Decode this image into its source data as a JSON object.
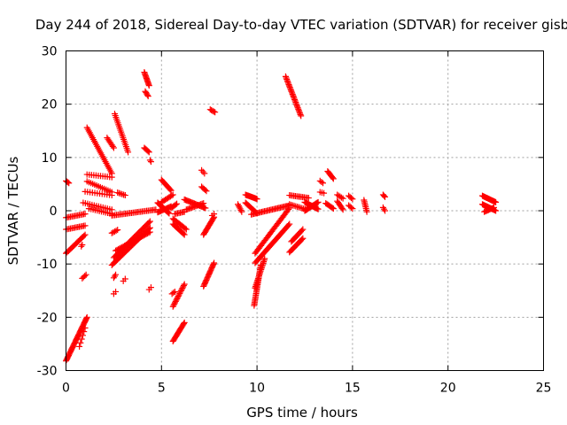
{
  "chart_data": {
    "type": "scatter",
    "title": "Day 244 of 2018, Sidereal Day-to-day VTEC variation (SDTVAR) for receiver gisb",
    "xlabel": "GPS time / hours",
    "ylabel": "SDTVAR / TECUs",
    "xlim": [
      0,
      25
    ],
    "ylim": [
      -30,
      30
    ],
    "xticks": [
      0,
      5,
      10,
      15,
      20,
      25
    ],
    "yticks": [
      -30,
      -20,
      -10,
      0,
      10,
      20,
      30
    ],
    "grid": true,
    "marker": "+",
    "color": "#ff0000",
    "segments": [
      {
        "x0": 0.0,
        "y0": -28.2,
        "x1": 1.1,
        "y1": -20.0,
        "n": 40
      },
      {
        "x0": 0.7,
        "y0": -25.5,
        "x1": 1.0,
        "y1": -22.0,
        "n": 6
      },
      {
        "x0": 0.0,
        "y0": 5.6,
        "x1": 0.15,
        "y1": 5.2,
        "n": 4
      },
      {
        "x0": 0.0,
        "y0": -8.0,
        "x1": 1.0,
        "y1": -4.5,
        "n": 18
      },
      {
        "x0": 0.0,
        "y0": -3.5,
        "x1": 1.0,
        "y1": -2.8,
        "n": 14
      },
      {
        "x0": 0.0,
        "y0": -1.3,
        "x1": 1.0,
        "y1": -0.6,
        "n": 14
      },
      {
        "x0": 0.85,
        "y0": -12.7,
        "x1": 1.05,
        "y1": -12.0,
        "n": 4
      },
      {
        "x0": 0.8,
        "y0": -6.7,
        "x1": 0.85,
        "y1": -6.4,
        "n": 2
      },
      {
        "x0": 1.1,
        "y0": 15.6,
        "x1": 2.4,
        "y1": 7.0,
        "n": 28
      },
      {
        "x0": 1.1,
        "y0": 6.8,
        "x1": 2.4,
        "y1": 6.3,
        "n": 12
      },
      {
        "x0": 1.1,
        "y0": 5.5,
        "x1": 2.4,
        "y1": 3.5,
        "n": 14
      },
      {
        "x0": 1.0,
        "y0": 3.6,
        "x1": 2.4,
        "y1": 2.9,
        "n": 12
      },
      {
        "x0": 0.9,
        "y0": 1.5,
        "x1": 2.4,
        "y1": 0.2,
        "n": 14
      },
      {
        "x0": 1.2,
        "y0": 0.4,
        "x1": 2.4,
        "y1": -0.6,
        "n": 12
      },
      {
        "x0": 2.15,
        "y0": 13.7,
        "x1": 2.5,
        "y1": 11.8,
        "n": 8
      },
      {
        "x0": 2.55,
        "y0": 18.2,
        "x1": 3.25,
        "y1": 11.0,
        "n": 22
      },
      {
        "x0": 2.7,
        "y0": 3.4,
        "x1": 3.1,
        "y1": 2.9,
        "n": 6
      },
      {
        "x0": 2.4,
        "y0": -0.9,
        "x1": 4.7,
        "y1": 0.2,
        "n": 30
      },
      {
        "x0": 2.4,
        "y0": -4.2,
        "x1": 2.7,
        "y1": -3.6,
        "n": 5
      },
      {
        "x0": 2.4,
        "y0": -10.2,
        "x1": 4.4,
        "y1": -3.2,
        "n": 36
      },
      {
        "x0": 2.5,
        "y0": -8.8,
        "x1": 4.4,
        "y1": -2.0,
        "n": 34
      },
      {
        "x0": 2.5,
        "y0": -12.6,
        "x1": 2.6,
        "y1": -12.0,
        "n": 3
      },
      {
        "x0": 2.6,
        "y0": -7.5,
        "x1": 4.4,
        "y1": -4.0,
        "n": 28
      },
      {
        "x0": 2.5,
        "y0": -15.6,
        "x1": 2.6,
        "y1": -15.2,
        "n": 2
      },
      {
        "x0": 3.0,
        "y0": -13.2,
        "x1": 3.1,
        "y1": -12.8,
        "n": 2
      },
      {
        "x0": 4.1,
        "y0": 26.0,
        "x1": 4.35,
        "y1": 23.5,
        "n": 12
      },
      {
        "x0": 4.15,
        "y0": 22.4,
        "x1": 4.3,
        "y1": 21.5,
        "n": 5
      },
      {
        "x0": 4.1,
        "y0": 11.8,
        "x1": 4.35,
        "y1": 11.0,
        "n": 6
      },
      {
        "x0": 4.4,
        "y0": 9.5,
        "x1": 4.45,
        "y1": 9.2,
        "n": 2
      },
      {
        "x0": 4.35,
        "y0": -14.8,
        "x1": 4.45,
        "y1": -14.4,
        "n": 2
      },
      {
        "x0": 4.8,
        "y0": 1.5,
        "x1": 5.4,
        "y1": -0.5,
        "n": 16
      },
      {
        "x0": 4.8,
        "y0": -0.3,
        "x1": 5.5,
        "y1": 0.8,
        "n": 14
      },
      {
        "x0": 5.0,
        "y0": 5.8,
        "x1": 5.5,
        "y1": 3.8,
        "n": 12
      },
      {
        "x0": 5.0,
        "y0": 1.6,
        "x1": 5.6,
        "y1": 3.0,
        "n": 10
      },
      {
        "x0": 5.6,
        "y0": -1.5,
        "x1": 6.3,
        "y1": -3.5,
        "n": 12
      },
      {
        "x0": 5.6,
        "y0": -2.5,
        "x1": 6.2,
        "y1": -4.5,
        "n": 12
      },
      {
        "x0": 5.7,
        "y0": -0.6,
        "x1": 6.2,
        "y1": -0.2,
        "n": 8
      },
      {
        "x0": 5.5,
        "y0": 0.5,
        "x1": 5.8,
        "y1": 1.3,
        "n": 6
      },
      {
        "x0": 5.6,
        "y0": -18.0,
        "x1": 6.2,
        "y1": -13.8,
        "n": 18
      },
      {
        "x0": 5.6,
        "y0": -24.5,
        "x1": 6.2,
        "y1": -21.0,
        "n": 18
      },
      {
        "x0": 5.55,
        "y0": -15.6,
        "x1": 5.7,
        "y1": -15.2,
        "n": 3
      },
      {
        "x0": 6.2,
        "y0": 2.1,
        "x1": 7.3,
        "y1": 0.5,
        "n": 20
      },
      {
        "x0": 6.3,
        "y0": 0.2,
        "x1": 7.2,
        "y1": 1.4,
        "n": 14
      },
      {
        "x0": 7.1,
        "y0": 7.6,
        "x1": 7.25,
        "y1": 7.0,
        "n": 3
      },
      {
        "x0": 7.1,
        "y0": 4.5,
        "x1": 7.35,
        "y1": 3.7,
        "n": 5
      },
      {
        "x0": 7.2,
        "y0": -4.5,
        "x1": 7.75,
        "y1": -1.2,
        "n": 16
      },
      {
        "x0": 7.2,
        "y0": -14.2,
        "x1": 7.75,
        "y1": -9.8,
        "n": 20
      },
      {
        "x0": 7.55,
        "y0": 19.0,
        "x1": 7.8,
        "y1": 18.5,
        "n": 5
      },
      {
        "x0": 7.65,
        "y0": -0.9,
        "x1": 7.75,
        "y1": -0.6,
        "n": 2
      },
      {
        "x0": 9.0,
        "y0": 1.2,
        "x1": 9.2,
        "y1": -0.2,
        "n": 6
      },
      {
        "x0": 9.4,
        "y0": 3.0,
        "x1": 10.0,
        "y1": 2.2,
        "n": 14
      },
      {
        "x0": 9.4,
        "y0": 1.5,
        "x1": 10.0,
        "y1": -0.5,
        "n": 14
      },
      {
        "x0": 9.7,
        "y0": -0.7,
        "x1": 11.7,
        "y1": 1.0,
        "n": 30
      },
      {
        "x0": 9.9,
        "y0": -8.0,
        "x1": 11.7,
        "y1": 0.5,
        "n": 36
      },
      {
        "x0": 9.9,
        "y0": -9.8,
        "x1": 11.7,
        "y1": -2.5,
        "n": 36
      },
      {
        "x0": 9.85,
        "y0": -17.8,
        "x1": 10.2,
        "y1": -10.2,
        "n": 28
      },
      {
        "x0": 9.9,
        "y0": -14.5,
        "x1": 10.4,
        "y1": -9.0,
        "n": 20
      },
      {
        "x0": 11.5,
        "y0": 25.2,
        "x1": 12.3,
        "y1": 17.8,
        "n": 30
      },
      {
        "x0": 11.7,
        "y0": 2.9,
        "x1": 12.7,
        "y1": 2.4,
        "n": 14
      },
      {
        "x0": 11.7,
        "y0": 1.2,
        "x1": 12.6,
        "y1": 0.2,
        "n": 12
      },
      {
        "x0": 11.7,
        "y0": -7.8,
        "x1": 12.4,
        "y1": -5.2,
        "n": 14
      },
      {
        "x0": 11.8,
        "y0": -5.8,
        "x1": 12.4,
        "y1": -3.5,
        "n": 12
      },
      {
        "x0": 12.5,
        "y0": 1.6,
        "x1": 13.2,
        "y1": 0.3,
        "n": 16
      },
      {
        "x0": 12.5,
        "y0": 0.0,
        "x1": 13.2,
        "y1": 1.6,
        "n": 16
      },
      {
        "x0": 13.3,
        "y0": 5.6,
        "x1": 13.45,
        "y1": 5.2,
        "n": 3
      },
      {
        "x0": 13.3,
        "y0": 3.5,
        "x1": 13.5,
        "y1": 3.3,
        "n": 3
      },
      {
        "x0": 13.7,
        "y0": 7.4,
        "x1": 14.0,
        "y1": 6.0,
        "n": 8
      },
      {
        "x0": 13.6,
        "y0": 1.4,
        "x1": 14.0,
        "y1": 0.4,
        "n": 8
      },
      {
        "x0": 14.2,
        "y0": 3.0,
        "x1": 14.5,
        "y1": 2.3,
        "n": 5
      },
      {
        "x0": 14.2,
        "y0": 1.8,
        "x1": 14.5,
        "y1": 0.2,
        "n": 8
      },
      {
        "x0": 14.8,
        "y0": 2.8,
        "x1": 15.0,
        "y1": 2.2,
        "n": 4
      },
      {
        "x0": 14.8,
        "y0": 1.0,
        "x1": 15.0,
        "y1": 0.4,
        "n": 4
      },
      {
        "x0": 15.6,
        "y0": 2.0,
        "x1": 15.75,
        "y1": -0.2,
        "n": 8
      },
      {
        "x0": 16.6,
        "y0": 3.0,
        "x1": 16.7,
        "y1": 2.6,
        "n": 3
      },
      {
        "x0": 16.6,
        "y0": 0.6,
        "x1": 16.7,
        "y1": 0.0,
        "n": 3
      },
      {
        "x0": 21.8,
        "y0": 2.8,
        "x1": 22.5,
        "y1": 1.6,
        "n": 16
      },
      {
        "x0": 21.8,
        "y0": 1.2,
        "x1": 22.5,
        "y1": 0.0,
        "n": 16
      },
      {
        "x0": 21.9,
        "y0": -0.2,
        "x1": 22.4,
        "y1": 0.6,
        "n": 10
      }
    ]
  }
}
